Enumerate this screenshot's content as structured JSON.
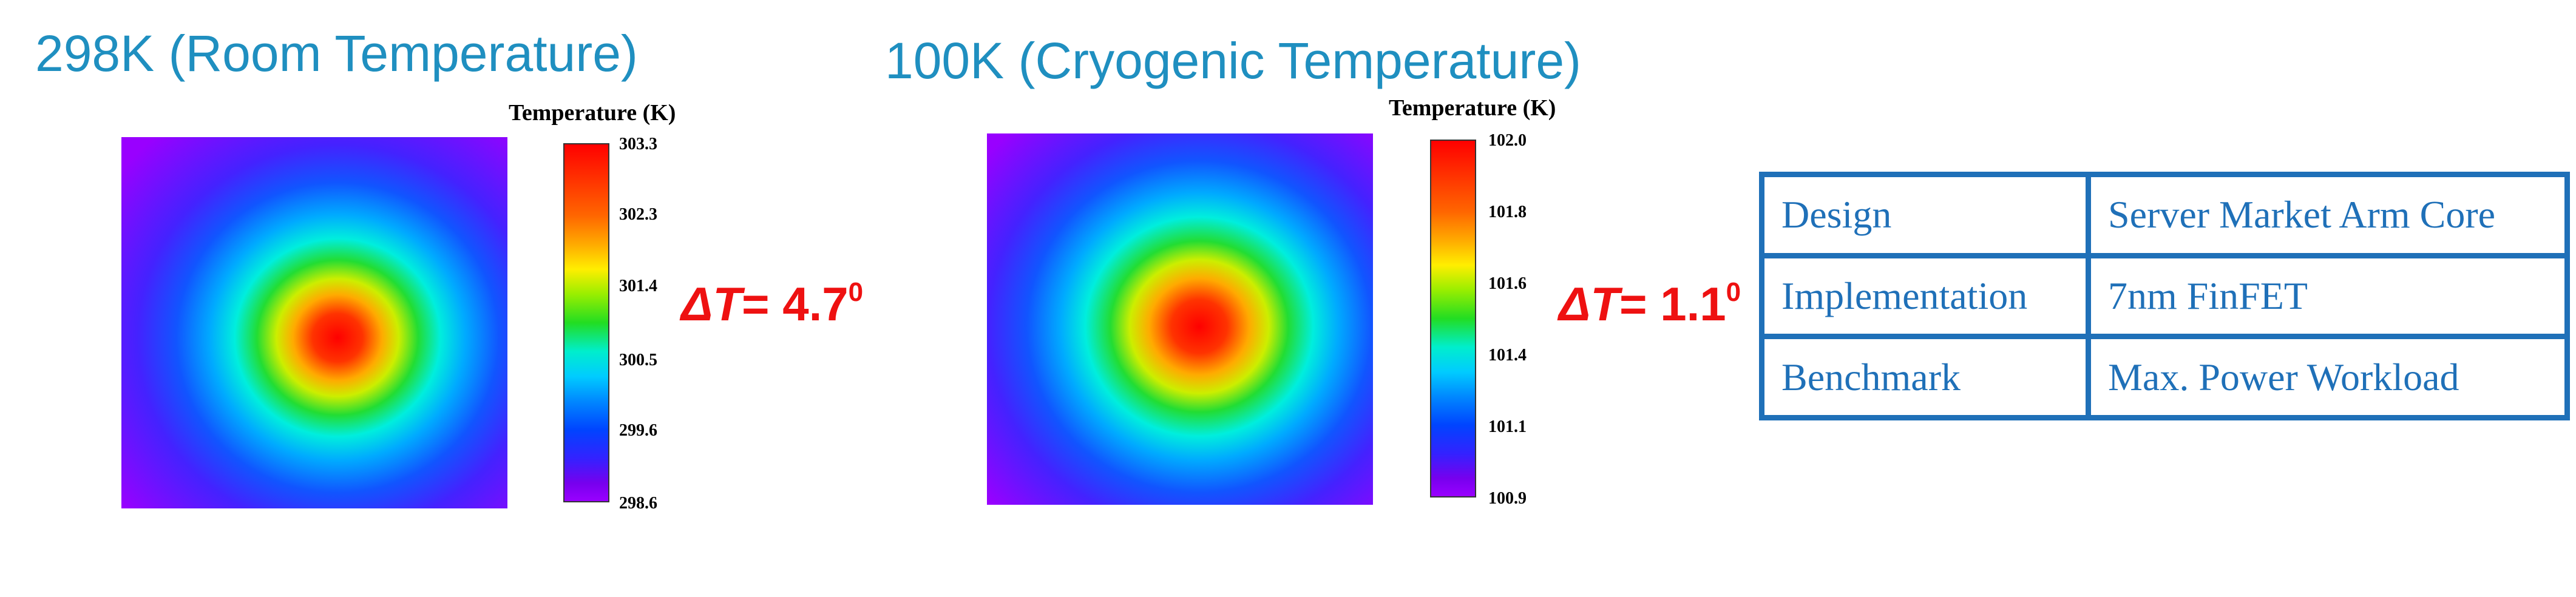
{
  "panels": [
    {
      "title": "298K (Room Temperature)",
      "colorbar": {
        "title": "Temperature (K)",
        "ticks": [
          "303.3",
          "302.3",
          "301.4",
          "300.5",
          "299.6",
          "298.6"
        ]
      },
      "delta": {
        "symbol": "ΔT",
        "value": "= 4.7",
        "sup": "0"
      },
      "hotspot": {
        "peak_offset": "lower-right"
      }
    },
    {
      "title": "100K (Cryogenic Temperature)",
      "colorbar": {
        "title": "Temperature (K)",
        "ticks": [
          "102.0",
          "101.8",
          "101.6",
          "101.4",
          "101.1",
          "100.9"
        ]
      },
      "delta": {
        "symbol": "ΔT",
        "value": "= 1.1",
        "sup": "0"
      },
      "hotspot": {
        "peak_offset": "center"
      }
    }
  ],
  "table": {
    "rows": [
      [
        "Design",
        "Server Market Arm Core"
      ],
      [
        "Implementation",
        "7nm FinFET"
      ],
      [
        "Benchmark",
        "Max. Power Workload"
      ]
    ]
  },
  "colors": {
    "title": "#1f8fc0",
    "delta": "#ee1111",
    "table": "#1f70b8"
  }
}
